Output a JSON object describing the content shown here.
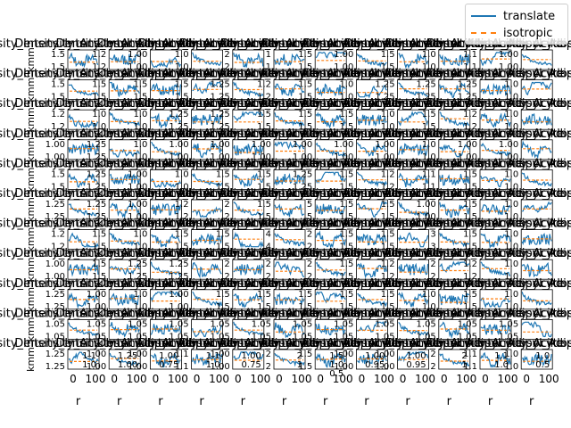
{
  "chart_data": {
    "type": "line",
    "layout": {
      "rows": 11,
      "cols": 12
    },
    "colors": {
      "translate": "#1f77b4",
      "isotropic": "#ff7f0e"
    },
    "legend": {
      "placement": "top-right",
      "entries": [
        "translate",
        "isotropic"
      ]
    },
    "xlabel": "r",
    "ylabel": "kmm",
    "x_ticks": [
      "0",
      "100"
    ],
    "panel_title": "Density_Intensity_Aciklosyl_Adipocyte",
    "series": [
      {
        "name": "translate",
        "style": "solid"
      },
      {
        "name": "isotropic",
        "style": "dashed"
      }
    ],
    "row_ytick_labels": [
      [
        "1.5",
        "1.2",
        "1.00",
        "1.0",
        "2",
        "1",
        "1.5",
        "1.00",
        "1.5",
        "1.0",
        "1.1",
        "1.00"
      ],
      [
        "1.5",
        "1.5",
        "1.5",
        "1.5",
        "1.25",
        "1.2",
        "1.5",
        "1.0",
        "1.25",
        "1.25",
        "1.25",
        "1.0"
      ],
      [
        "1.2",
        "1.0",
        "1.0",
        "1.25",
        "1.25",
        "1.5",
        "1.5",
        "1.5",
        "1.0",
        "1.5",
        "1.2",
        "1.0"
      ],
      [
        "1.00",
        "1.25",
        "1.0",
        "1.00",
        "1.00",
        "1.00",
        "1.00",
        "1.00",
        "1.00",
        "1.0",
        "1.00",
        "1.00"
      ],
      [
        "1.5",
        "1.25",
        "1.00",
        "1.0",
        "1.5",
        "1.5",
        "1.25",
        "1.5",
        "1.2",
        "1.1",
        "1.5",
        "1.0"
      ],
      [
        "1.25",
        "1.25",
        "1.00",
        "1.2",
        "2",
        "1.5",
        "5",
        "1.5",
        "1.5",
        "1.00",
        "1.5",
        "1.0"
      ],
      [
        "1.2",
        "1.5",
        "1.0",
        "1.5",
        "1.5",
        "4",
        "2",
        "1.5",
        "1.5",
        "3",
        "1.5",
        "1.0"
      ],
      [
        "1.00",
        "1.5",
        "1.25",
        "1.25",
        "2",
        "2",
        "2",
        "1.5",
        "1.2",
        "2",
        "1.2",
        "1.0"
      ],
      [
        "1.25",
        "1.00",
        "1.0",
        "1.00",
        "1.5",
        "1.5",
        "1.5",
        "1.5",
        "1.5",
        "1.0",
        "1.5",
        "1.0"
      ],
      [
        "1.05",
        "1.05",
        "1.05",
        "1.05",
        "1.05",
        "1.05",
        "1.05",
        "1.05",
        "1.05",
        "1.05",
        "1.05",
        "1.05"
      ],
      [
        "1.25",
        "1.00",
        "1.00",
        "1.1",
        "1.00",
        "2",
        "1.5",
        "1.00",
        "1.00",
        "2",
        "1.1",
        "1.0"
      ]
    ],
    "bottom_ytick_labels": [
      [
        "1.1",
        "1.0"
      ],
      [
        "1.25",
        "1.00"
      ],
      [
        "1.00",
        "0.75"
      ],
      [
        "1.1",
        "1.0"
      ],
      [
        "1.00",
        "0.75"
      ],
      [
        "2",
        "1"
      ],
      [
        "1.5",
        "1.0",
        "0.5"
      ],
      [
        "1.00",
        "0.95"
      ],
      [
        "1.00",
        "0.95"
      ],
      [
        "2",
        "1"
      ],
      [
        "1.1",
        "1.0"
      ],
      [
        "1.0",
        "0.5"
      ]
    ]
  }
}
